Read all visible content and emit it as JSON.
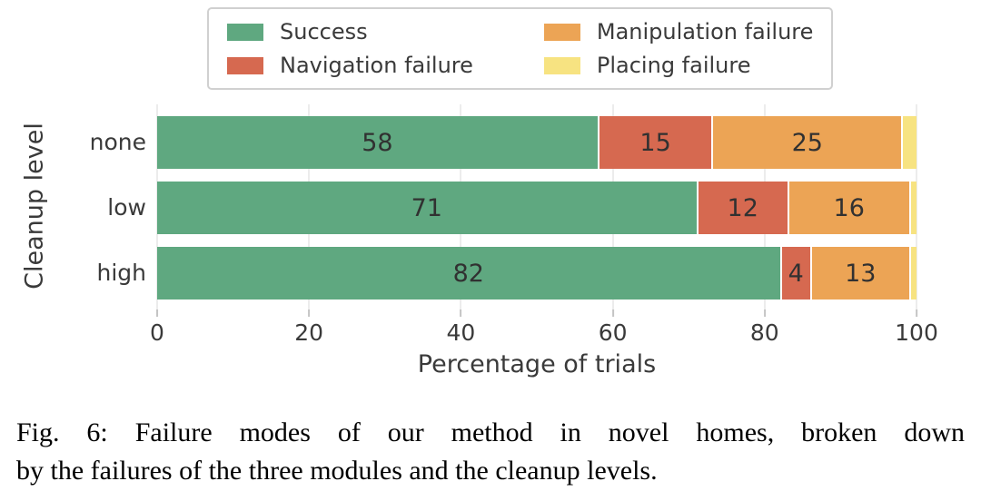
{
  "chart_data": {
    "type": "bar",
    "orientation": "horizontal",
    "stacked": true,
    "categories": [
      "none",
      "low",
      "high"
    ],
    "series": [
      {
        "name": "Success",
        "color": "#5FA880",
        "values": [
          58,
          71,
          82
        ],
        "show_labels": true
      },
      {
        "name": "Navigation failure",
        "color": "#D66950",
        "values": [
          15,
          12,
          4
        ],
        "show_labels": true
      },
      {
        "name": "Manipulation failure",
        "color": "#ECA455",
        "values": [
          25,
          16,
          13
        ],
        "show_labels": true
      },
      {
        "name": "Placing failure",
        "color": "#F7E381",
        "values": [
          2,
          1,
          1
        ],
        "show_labels": false
      }
    ],
    "xlabel": "Percentage of trials",
    "ylabel": "Cleanup level",
    "xlim": [
      0,
      100
    ],
    "xticks": [
      0,
      20,
      40,
      60,
      80,
      100
    ],
    "grid": true,
    "legend_position": "top-center",
    "legend_columns": 2
  },
  "caption": {
    "line1": "Fig. 6: Failure modes of our method in novel homes, broken down",
    "line2": "by the failures of the three modules and the cleanup levels."
  }
}
